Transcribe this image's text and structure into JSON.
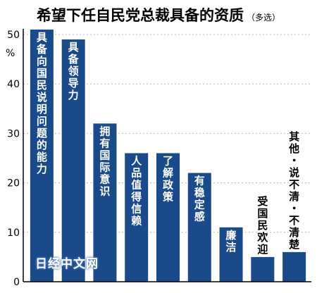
{
  "chart_data": {
    "type": "bar",
    "title": "希望下任自民党总裁具备的资质",
    "subtitle": "（多选）",
    "ylabel": "%",
    "ylim": [
      0,
      50
    ],
    "yticks": [
      0,
      10,
      20,
      30,
      40,
      50
    ],
    "grid": true,
    "bar_color": "#1a4a8a",
    "categories": [
      "具备向国民说明问题的能力",
      "具备领导力",
      "拥有国际意识",
      "人品值得信赖",
      "了解政策",
      "有稳定感",
      "廉洁",
      "受国民欢迎",
      "其他・说不清・不清楚"
    ],
    "values": [
      51,
      49,
      32,
      26,
      26,
      22,
      11,
      5,
      6
    ]
  },
  "watermark": "日经中文网"
}
